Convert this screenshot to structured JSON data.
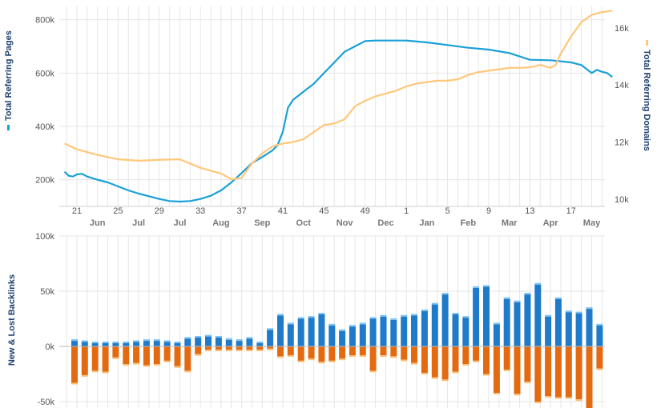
{
  "colors": {
    "pages": "#1aa0d8",
    "domains": "#ffc77a",
    "new_bar": "#1f7ac9",
    "new_cap": "#7ec3f0",
    "lost_bar": "#e46a12",
    "lost_cap": "#f8c27a",
    "grid": "#e6e6e6",
    "axis_label": "#1e3f6e"
  },
  "chart_data": [
    {
      "type": "line",
      "ylabel": "Total Referring Pages",
      "y2label": "Total Referring Domains",
      "ylim": [
        100000,
        850000
      ],
      "y2lim": [
        9750,
        16750
      ],
      "yticks": [
        {
          "v": 200000,
          "t": "200k"
        },
        {
          "v": 400000,
          "t": "400k"
        },
        {
          "v": 600000,
          "t": "600k"
        },
        {
          "v": 800000,
          "t": "800k"
        }
      ],
      "y2ticks": [
        {
          "v": 10000,
          "t": "10k"
        },
        {
          "v": 12000,
          "t": "12k"
        },
        {
          "v": 14000,
          "t": "14k"
        },
        {
          "v": 16000,
          "t": "16k"
        }
      ],
      "grid": true,
      "xlim": [
        0,
        52
      ],
      "week_ticks": [
        {
          "w": 0,
          "t": "21"
        },
        {
          "w": 4,
          "t": "25"
        },
        {
          "w": 8,
          "t": "29"
        },
        {
          "w": 12,
          "t": "33"
        },
        {
          "w": 16,
          "t": "37"
        },
        {
          "w": 20,
          "t": "41"
        },
        {
          "w": 24,
          "t": "45"
        },
        {
          "w": 28,
          "t": "49"
        },
        {
          "w": 32,
          "t": "1"
        },
        {
          "w": 36,
          "t": "5"
        },
        {
          "w": 40,
          "t": "9"
        },
        {
          "w": 44,
          "t": "13"
        },
        {
          "w": 48,
          "t": "17"
        }
      ],
      "month_ticks": [
        {
          "w": 2,
          "t": "Jun"
        },
        {
          "w": 6,
          "t": "Jul"
        },
        {
          "w": 10,
          "t": "Jul"
        },
        {
          "w": 14,
          "t": "Aug"
        },
        {
          "w": 18,
          "t": "Sep"
        },
        {
          "w": 22,
          "t": "Oct"
        },
        {
          "w": 26,
          "t": "Nov"
        },
        {
          "w": 30,
          "t": "Dec"
        },
        {
          "w": 34,
          "t": "Jan"
        },
        {
          "w": 38,
          "t": "Feb"
        },
        {
          "w": 42,
          "t": "Mar"
        },
        {
          "w": 46,
          "t": "Apr"
        },
        {
          "w": 50,
          "t": "May"
        }
      ],
      "series": [
        {
          "name": "Total Referring Pages",
          "axis": "left",
          "points": [
            [
              -1.2,
              230000
            ],
            [
              -0.8,
              215000
            ],
            [
              -0.4,
              212000
            ],
            [
              0,
              220000
            ],
            [
              0.5,
              222000
            ],
            [
              1,
              212000
            ],
            [
              2,
              200000
            ],
            [
              3,
              190000
            ],
            [
              4,
              175000
            ],
            [
              5,
              160000
            ],
            [
              6,
              148000
            ],
            [
              7,
              138000
            ],
            [
              8,
              128000
            ],
            [
              9,
              120000
            ],
            [
              10,
              118000
            ],
            [
              11,
              120000
            ],
            [
              12,
              128000
            ],
            [
              13,
              140000
            ],
            [
              14,
              160000
            ],
            [
              15,
              190000
            ],
            [
              16,
              225000
            ],
            [
              17,
              262000
            ],
            [
              18,
              285000
            ],
            [
              19,
              310000
            ],
            [
              19.5,
              330000
            ],
            [
              20,
              380000
            ],
            [
              20.5,
              470000
            ],
            [
              21,
              500000
            ],
            [
              22,
              530000
            ],
            [
              23,
              560000
            ],
            [
              24,
              600000
            ],
            [
              25,
              640000
            ],
            [
              26,
              680000
            ],
            [
              27,
              700000
            ],
            [
              28,
              720000
            ],
            [
              29,
              722000
            ],
            [
              30,
              722000
            ],
            [
              32,
              722000
            ],
            [
              34,
              715000
            ],
            [
              36,
              705000
            ],
            [
              38,
              695000
            ],
            [
              40,
              688000
            ],
            [
              42,
              675000
            ],
            [
              44,
              650000
            ],
            [
              46,
              648000
            ],
            [
              48,
              640000
            ],
            [
              49,
              630000
            ],
            [
              50,
              600000
            ],
            [
              50.5,
              612000
            ],
            [
              51,
              605000
            ],
            [
              51.5,
              600000
            ],
            [
              52,
              585000
            ]
          ]
        },
        {
          "name": "Total Referring Domains",
          "axis": "right",
          "points": [
            [
              -1.2,
              11950
            ],
            [
              0,
              11750
            ],
            [
              2,
              11550
            ],
            [
              4,
              11400
            ],
            [
              6,
              11350
            ],
            [
              8,
              11380
            ],
            [
              10,
              11400
            ],
            [
              12,
              11100
            ],
            [
              14,
              10900
            ],
            [
              15,
              10700
            ],
            [
              16,
              10750
            ],
            [
              17,
              11250
            ],
            [
              18,
              11600
            ],
            [
              19,
              11850
            ],
            [
              20,
              11950
            ],
            [
              21,
              12000
            ],
            [
              22,
              12100
            ],
            [
              23,
              12350
            ],
            [
              24,
              12600
            ],
            [
              25,
              12650
            ],
            [
              26,
              12800
            ],
            [
              27,
              13250
            ],
            [
              28,
              13450
            ],
            [
              29,
              13600
            ],
            [
              30,
              13700
            ],
            [
              31,
              13800
            ],
            [
              32,
              13950
            ],
            [
              33,
              14050
            ],
            [
              34,
              14100
            ],
            [
              35,
              14150
            ],
            [
              36,
              14150
            ],
            [
              37,
              14200
            ],
            [
              38,
              14350
            ],
            [
              39,
              14450
            ],
            [
              40,
              14500
            ],
            [
              41,
              14550
            ],
            [
              42,
              14600
            ],
            [
              43,
              14600
            ],
            [
              44,
              14620
            ],
            [
              45,
              14700
            ],
            [
              46,
              14600
            ],
            [
              46.5,
              14700
            ],
            [
              47,
              15100
            ],
            [
              48,
              15700
            ],
            [
              49,
              16200
            ],
            [
              50,
              16450
            ],
            [
              51,
              16550
            ],
            [
              52,
              16600
            ]
          ]
        }
      ]
    },
    {
      "type": "bar",
      "ylabel": "New & Lost Backlinks",
      "ylim": [
        -55000,
        100000
      ],
      "yticks": [
        {
          "v": -50000,
          "t": "-50k"
        },
        {
          "v": 0,
          "t": "0k"
        },
        {
          "v": 50000,
          "t": "50k"
        },
        {
          "v": 100000,
          "t": "100k"
        }
      ],
      "grid": true,
      "series": [
        {
          "name": "New",
          "values": [
            5,
            4,
            3,
            3,
            3,
            3,
            4,
            5,
            5,
            4,
            3,
            7,
            8,
            9,
            8,
            6,
            5,
            7,
            3,
            15,
            28,
            20,
            25,
            26,
            29,
            19,
            14,
            18,
            20,
            25,
            27,
            24,
            27,
            28,
            32,
            38,
            47,
            29,
            26,
            53,
            54,
            20,
            43,
            40,
            47,
            56,
            27,
            43,
            31,
            30,
            34,
            19
          ]
        },
        {
          "name": "Lost",
          "values": [
            -33,
            -26,
            -22,
            -23,
            -10,
            -16,
            -15,
            -17,
            -16,
            -13,
            -18,
            -22,
            -7,
            -3,
            -3,
            -3,
            -3,
            -3,
            -3,
            -2,
            -9,
            -8,
            -13,
            -11,
            -14,
            -13,
            -11,
            -8,
            -8,
            -22,
            -8,
            -9,
            -12,
            -15,
            -24,
            -28,
            -30,
            -23,
            -16,
            -13,
            -25,
            -42,
            -21,
            -43,
            -32,
            -50,
            -45,
            -46,
            -46,
            -48,
            -58,
            -20
          ]
        }
      ]
    }
  ]
}
